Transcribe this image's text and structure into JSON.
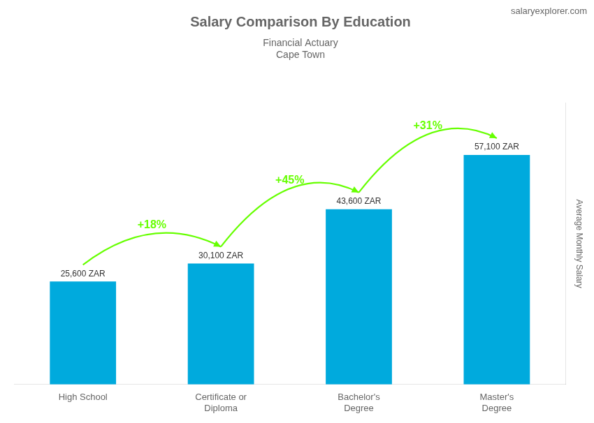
{
  "chart_data": {
    "type": "bar",
    "title": "Salary Comparison By Education",
    "subtitle": [
      "Financial Actuary",
      "Cape Town"
    ],
    "ylabel": "Average Monthly Salary",
    "categories": [
      "High School",
      "Certificate or\nDiploma",
      "Bachelor's\nDegree",
      "Master's\nDegree"
    ],
    "values": [
      25600,
      30100,
      43600,
      57100
    ],
    "value_labels": [
      "25,600 ZAR",
      "30,100 ZAR",
      "43,600 ZAR",
      "57,100 ZAR"
    ],
    "data_labels": true,
    "color": "#00aadd",
    "ylim": [
      0,
      70000
    ],
    "grid": false,
    "tick_labels": "x",
    "annotations": [
      {
        "text": "+18%",
        "between": [
          "High School",
          "Certificate or\nDiploma"
        ],
        "color": "#66ff00"
      },
      {
        "text": "+45%",
        "between": [
          "Certificate or\nDiploma",
          "Bachelor's\nDegree"
        ],
        "color": "#66ff00"
      },
      {
        "text": "+31%",
        "between": [
          "Bachelor's\nDegree",
          "Master's\nDegree"
        ],
        "color": "#66ff00"
      },
      {
        "text": "salaryexplorer.com"
      }
    ]
  }
}
